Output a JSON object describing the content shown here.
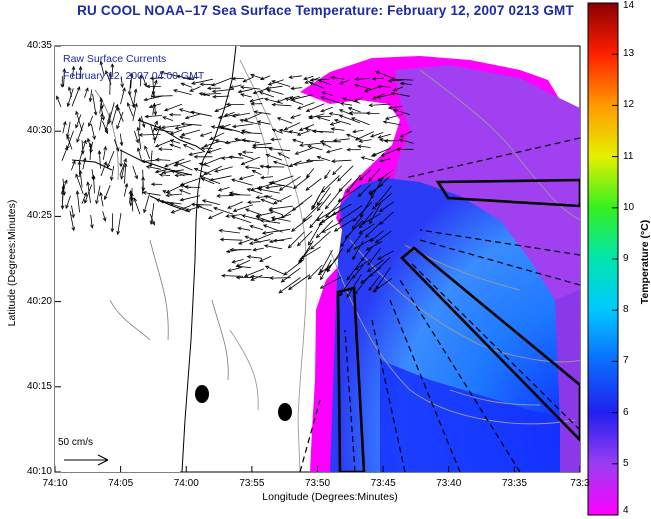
{
  "title": "RU COOL  NOAA–17  Sea Surface Temperature:  February 12, 2007 0213 GMT",
  "annotations": {
    "currents_label": "Raw Surface Currents",
    "currents_time": "February 12, 2007 04:00 GMT"
  },
  "axes": {
    "x_title": "Longitude (Degrees:Minutes)",
    "y_title": "Latitude (Degrees:Minutes)",
    "x_ticks": [
      "74:10",
      "74:05",
      "74:00",
      "73:55",
      "73:50",
      "73:45",
      "73:40",
      "73:35",
      "73:3"
    ],
    "y_ticks": [
      "40:35",
      "40:30",
      "40:25",
      "40:20",
      "40:15",
      "40:10"
    ]
  },
  "colorbar": {
    "title": "Temperature (°C)",
    "ticks": [
      "14",
      "13",
      "12",
      "11",
      "10",
      "9",
      "8",
      "7",
      "6",
      "5",
      "4"
    ],
    "colors": [
      "#ff00ff",
      "#9a3df2",
      "#2020ee",
      "#0b6cff",
      "#00c8ff",
      "#00e6b0",
      "#34f020",
      "#e6f000",
      "#ff9a00",
      "#ff2000",
      "#8b0000"
    ]
  },
  "scale_label": "50 cm/s",
  "palette": {
    "sst_warm_edge": "#ff00ff",
    "sst_core": "#0b3cff",
    "coast": "#000000",
    "contour": "#9a9a9a",
    "vector": "#000000"
  }
}
